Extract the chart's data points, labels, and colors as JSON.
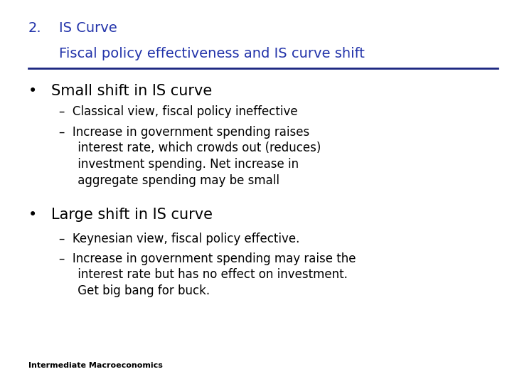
{
  "background_color": "#ffffff",
  "title_number": "2.",
  "title_line1": "IS Curve",
  "title_line2": "Fiscal policy effectiveness and IS curve shift",
  "title_color": "#2233aa",
  "separator_color": "#1a2580",
  "bullet1": "Small shift in IS curve",
  "bullet1_color": "#000000",
  "bullet1_size": 15,
  "sub1_1": "–  Classical view, fiscal policy ineffective",
  "sub1_2a": "–  Increase in government spending raises",
  "sub1_2b": "     interest rate, which crowds out (reduces)",
  "sub1_2c": "     investment spending. Net increase in",
  "sub1_2d": "     aggregate spending may be small",
  "sub_color": "#000000",
  "sub_size": 12,
  "bullet2": "Large shift in IS curve",
  "bullet2_color": "#000000",
  "bullet2_size": 15,
  "sub2_1": "–  Keynesian view, fiscal policy effective.",
  "sub2_2a": "–  Increase in government spending may raise the",
  "sub2_2b": "     interest rate but has no effect on investment.",
  "sub2_2c": "     Get big bang for buck.",
  "footer": "Intermediate Macroeconomics",
  "footer_size": 8,
  "footer_color": "#000000",
  "title_size": 14
}
